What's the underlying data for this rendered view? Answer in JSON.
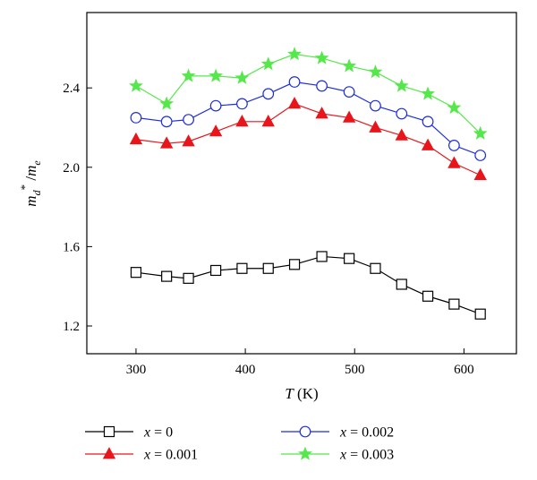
{
  "chart_data": {
    "type": "line",
    "xlabel": {
      "var": "T",
      "unit": " (K)"
    },
    "ylabel": {
      "base": "m",
      "sub1": "d",
      "sup": "*",
      "slash": " /",
      "base2": "m",
      "sub2": "e"
    },
    "xlim": [
      255,
      648
    ],
    "ylim": [
      1.06,
      2.78
    ],
    "xticks": [
      300,
      400,
      500,
      600
    ],
    "yticks": [
      1.2,
      1.6,
      2.0,
      2.4
    ],
    "ytick_labels": [
      "1.2",
      "1.6",
      "2.0",
      "2.4"
    ],
    "grid": false,
    "legend_position": "bottom",
    "x": [
      300,
      328,
      348,
      373,
      397,
      421,
      445,
      470,
      495,
      519,
      543,
      567,
      591,
      615
    ],
    "series": [
      {
        "name": "x = 0",
        "name_var": "x",
        "name_rest": " = 0",
        "color": "#000000",
        "marker": "square-open",
        "values": [
          1.47,
          1.45,
          1.44,
          1.48,
          1.49,
          1.49,
          1.51,
          1.55,
          1.54,
          1.49,
          1.41,
          1.35,
          1.31,
          1.26
        ]
      },
      {
        "name": "x = 0.001",
        "name_var": "x",
        "name_rest": " = 0.001",
        "color": "#e8151b",
        "marker": "triangle-filled",
        "values": [
          2.14,
          2.12,
          2.13,
          2.18,
          2.23,
          2.23,
          2.32,
          2.27,
          2.25,
          2.2,
          2.16,
          2.11,
          2.02,
          1.96
        ]
      },
      {
        "name": "x = 0.002",
        "name_var": "x",
        "name_rest": " = 0.002",
        "color": "#1f2fd8",
        "marker": "circle-open",
        "values": [
          2.25,
          2.23,
          2.24,
          2.31,
          2.32,
          2.37,
          2.43,
          2.41,
          2.38,
          2.31,
          2.27,
          2.23,
          2.11,
          2.06
        ]
      },
      {
        "name": "x = 0.003",
        "name_var": "x",
        "name_rest": " = 0.003",
        "color": "#55e84a",
        "marker": "star-filled",
        "values": [
          2.41,
          2.32,
          2.46,
          2.46,
          2.45,
          2.52,
          2.57,
          2.55,
          2.51,
          2.48,
          2.41,
          2.37,
          2.3,
          2.17
        ]
      }
    ]
  }
}
